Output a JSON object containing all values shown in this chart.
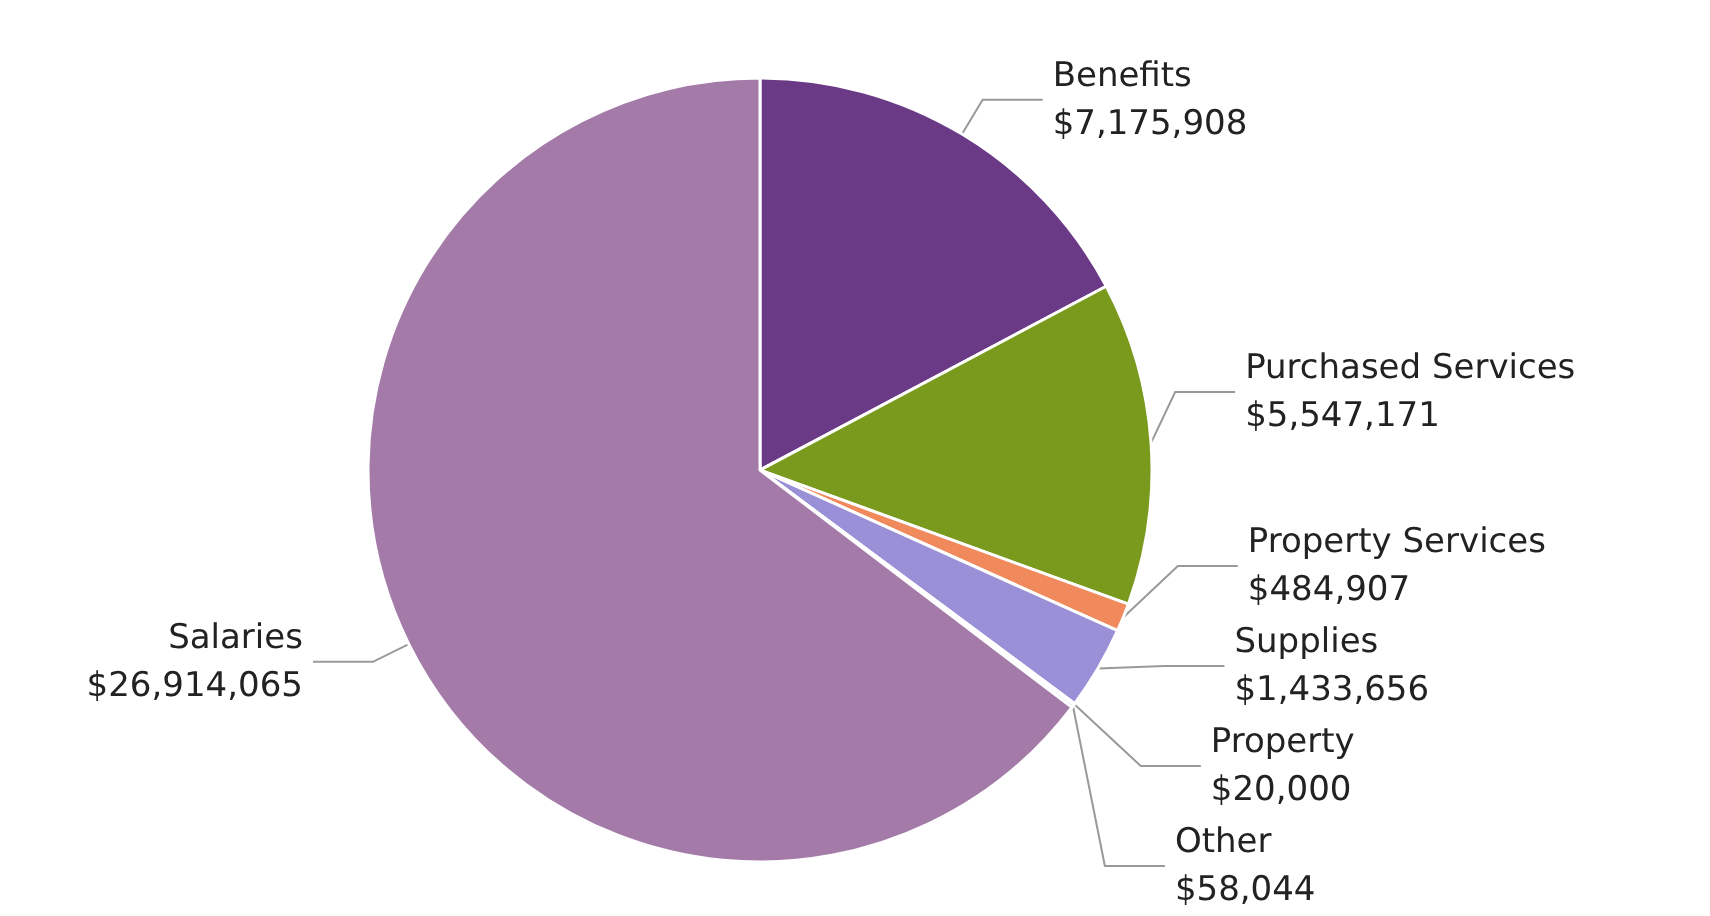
{
  "chart_data": {
    "type": "pie",
    "categories": [
      "Benefits",
      "Purchased Services",
      "Property Services",
      "Supplies",
      "Property",
      "Other",
      "Salaries"
    ],
    "values": [
      7175908,
      5547171,
      484907,
      1433656,
      20000,
      58044,
      26914065
    ],
    "value_labels": [
      "$7,175,908",
      "$5,547,171",
      "$484,907",
      "$1,433,656",
      "$20,000",
      "$58,044",
      "$26,914,065"
    ],
    "colors": [
      "#6b3a86",
      "#7a9a1e",
      "#f08a5d",
      "#9a90d8",
      "#e8e8f0",
      "#b8b0e0",
      "#a47ba8"
    ],
    "legend": false
  }
}
